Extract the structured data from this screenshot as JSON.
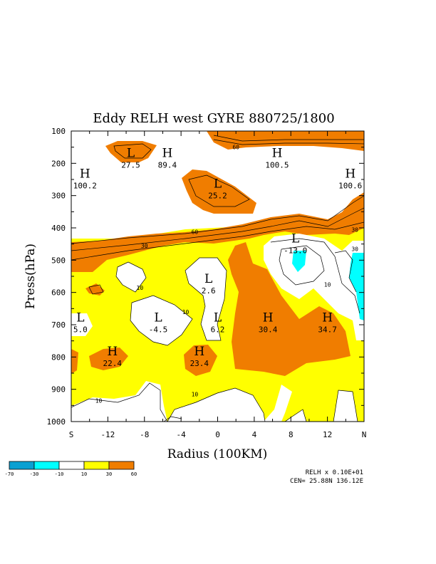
{
  "chart_data": {
    "type": "heatmap",
    "title": "Eddy RELH west GYRE 880725/1800",
    "xlabel": "Radius (100KM)",
    "ylabel": "Press(hPa)",
    "x_ticks": [
      {
        "value": -16,
        "label": "S"
      },
      {
        "value": -12,
        "label": "-12"
      },
      {
        "value": -8,
        "label": "-8"
      },
      {
        "value": -4,
        "label": "-4"
      },
      {
        "value": 0,
        "label": "0"
      },
      {
        "value": 4,
        "label": "4"
      },
      {
        "value": 8,
        "label": "8"
      },
      {
        "value": 12,
        "label": "12"
      },
      {
        "value": 16,
        "label": "N"
      }
    ],
    "y_ticks": [
      100,
      200,
      300,
      400,
      500,
      600,
      700,
      800,
      900,
      1000
    ],
    "xlim": [
      -16,
      16
    ],
    "ylim": [
      1000,
      100
    ],
    "extrema": [
      {
        "kind": "L",
        "value": "27.5",
        "x": -9.5,
        "p": 180
      },
      {
        "kind": "H",
        "value": "89.4",
        "x": -5.5,
        "p": 180
      },
      {
        "kind": "H",
        "value": "100.2",
        "x": -14.5,
        "p": 245
      },
      {
        "kind": "H",
        "value": "100.5",
        "x": 6.5,
        "p": 180
      },
      {
        "kind": "H",
        "value": "100.6",
        "x": 14.5,
        "p": 245
      },
      {
        "kind": "L",
        "value": "25.2",
        "x": 0,
        "p": 275
      },
      {
        "kind": "L",
        "value": "-13.0",
        "x": 8.5,
        "p": 445
      },
      {
        "kind": "L",
        "value": "2.6",
        "x": -1,
        "p": 570
      },
      {
        "kind": "L",
        "value": "5.0",
        "x": -15,
        "p": 690
      },
      {
        "kind": "L",
        "value": "-4.5",
        "x": -6.5,
        "p": 690
      },
      {
        "kind": "L",
        "value": "6.2",
        "x": 0,
        "p": 690
      },
      {
        "kind": "H",
        "value": "30.4",
        "x": 5.5,
        "p": 690
      },
      {
        "kind": "H",
        "value": "34.7",
        "x": 12,
        "p": 690
      },
      {
        "kind": "H",
        "value": "22.4",
        "x": -11.5,
        "p": 795
      },
      {
        "kind": "H",
        "value": "23.4",
        "x": -2,
        "p": 795
      }
    ],
    "contour_labels": [
      {
        "text": "10",
        "x": -8.5,
        "p": 585
      },
      {
        "text": "10",
        "x": -3.5,
        "p": 660
      },
      {
        "text": "10",
        "x": -2.5,
        "p": 915
      },
      {
        "text": "10",
        "x": -13,
        "p": 935
      },
      {
        "text": "10",
        "x": 12,
        "p": 575
      },
      {
        "text": "30",
        "x": -8,
        "p": 455
      },
      {
        "text": "30",
        "x": 15,
        "p": 465
      },
      {
        "text": "60",
        "x": -2.5,
        "p": 412
      },
      {
        "text": "60",
        "x": 2,
        "p": 150
      },
      {
        "text": "30",
        "x": 15,
        "p": 405
      }
    ],
    "colorbar": {
      "bins": [
        {
          "color": "#0aa0d2",
          "label": "-70"
        },
        {
          "color": "#00ffff",
          "label": "-30"
        },
        {
          "color": "#ffffff",
          "label": "-10"
        },
        {
          "color": "#ffff00",
          "label": "10"
        },
        {
          "color": "#f07d00",
          "label": "30"
        }
      ],
      "end_label": "60"
    },
    "info": {
      "line1": "RELH x  0.10E+01",
      "line2": "CEN= 25.88N  136.12E"
    }
  },
  "colors": {
    "orange": "#f07d00",
    "yellow": "#ffff00",
    "cyan": "#00ffff",
    "blue": "#0aa0d2",
    "white": "#ffffff"
  }
}
